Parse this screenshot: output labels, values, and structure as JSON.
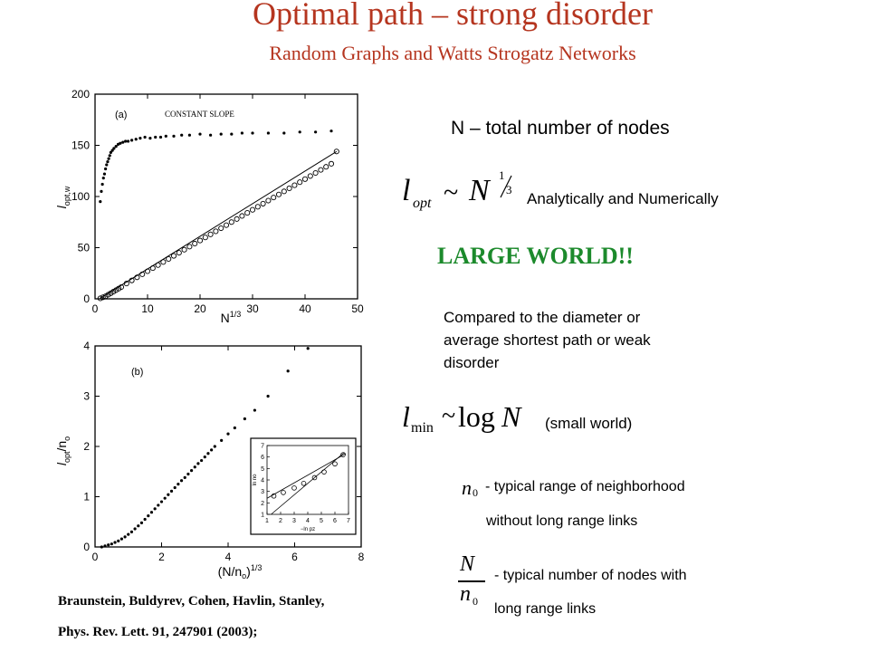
{
  "header": {
    "title": "Optimal path – strong disorder",
    "subtitle": "Random Graphs and Watts Strogatz Networks"
  },
  "text": {
    "n_def": "N – total number of nodes",
    "analytic": "Analytically and Numerically",
    "large_world": "LARGE WORLD!!",
    "compared_1": "Compared to the diameter or",
    "compared_2": "average shortest path or weak",
    "compared_3": "disorder",
    "small_world": "(small world)",
    "n0_desc_1": "- typical range of neighborhood",
    "n0_desc_2": "without long range links",
    "nn0_desc_1": "- typical number of nodes with",
    "nn0_desc_2": "long range links",
    "ref_1": "Braunstein, Buldyrev, Cohen, Havlin, Stanley,",
    "ref_2": "Phys. Rev. Lett. 91, 247901 (2003);"
  },
  "formulas": {
    "lopt_base": "l",
    "lopt_sub": "opt",
    "tilde": "~",
    "N": "N",
    "exp_num": "1",
    "exp_den": "3",
    "lmin_sub": "min",
    "log": "log",
    "n0_n": "n",
    "n0_sub": "0"
  },
  "chart_data": [
    {
      "type": "scatter",
      "panel_label": "(a)",
      "annotation": "CONSTANT SLOPE",
      "xlabel": "N1/3",
      "ylabel": "lopt,w",
      "xlim": [
        0,
        50
      ],
      "ylim": [
        0,
        200
      ],
      "xticks": [
        0,
        10,
        20,
        30,
        40,
        50
      ],
      "yticks": [
        0,
        50,
        100,
        150,
        200
      ],
      "series": [
        {
          "marker": "dot",
          "x": [
            1.0,
            1.2,
            1.4,
            1.6,
            1.8,
            2.0,
            2.2,
            2.4,
            2.6,
            2.8,
            3.0,
            3.3,
            3.6,
            4.0,
            4.4,
            4.8,
            5.3,
            5.8,
            6.3,
            7.0,
            7.8,
            8.6,
            9.5,
            10.5,
            11.5,
            12.5,
            13.5,
            15,
            16.5,
            18,
            20,
            22,
            24,
            26,
            28,
            30,
            33,
            36,
            39,
            42,
            45
          ],
          "y": [
            95,
            105,
            112,
            118,
            122,
            127,
            131,
            134,
            137,
            140,
            143,
            145,
            147,
            149,
            151,
            152,
            153,
            154,
            154,
            155,
            156,
            157,
            158,
            157,
            158,
            158,
            159,
            159,
            160,
            160,
            161,
            160,
            161,
            161,
            162,
            162,
            162,
            162,
            163,
            163,
            164
          ]
        },
        {
          "marker": "circle",
          "fit_line": true,
          "x": [
            1.0,
            1.5,
            2.0,
            2.5,
            3.0,
            3.5,
            4.0,
            4.5,
            5.0,
            6.0,
            7.0,
            8.0,
            9.0,
            10,
            11,
            12,
            13,
            14,
            15,
            16,
            17,
            18,
            19,
            20,
            21,
            22,
            23,
            24,
            25,
            26,
            27,
            28,
            29,
            30,
            31,
            32,
            33,
            34,
            35,
            36,
            37,
            38,
            39,
            40,
            41,
            42,
            43,
            44,
            45,
            46
          ],
          "y": [
            0.5,
            1.5,
            2.5,
            4,
            5.5,
            7,
            8.5,
            10,
            11.5,
            15,
            18,
            21,
            24,
            27,
            30,
            33,
            36,
            39,
            42,
            45,
            48,
            51,
            54,
            57,
            60,
            63,
            66,
            69,
            72,
            75,
            78,
            81,
            84,
            87,
            90,
            93,
            96,
            99,
            102,
            105,
            108,
            111,
            114,
            117,
            120,
            123,
            126,
            129,
            132,
            144
          ]
        }
      ]
    },
    {
      "type": "scatter",
      "panel_label": "(b)",
      "xlabel": "(N/no)1/3",
      "ylabel": "lopt/no",
      "xlim": [
        0,
        8
      ],
      "ylim": [
        0,
        4
      ],
      "xticks": [
        0,
        2,
        4,
        6,
        8
      ],
      "yticks": [
        0,
        1,
        2,
        3,
        4
      ],
      "series": [
        {
          "marker": "dot",
          "x": [
            0.2,
            0.3,
            0.4,
            0.5,
            0.6,
            0.7,
            0.8,
            0.9,
            1.0,
            1.1,
            1.2,
            1.3,
            1.4,
            1.5,
            1.6,
            1.7,
            1.8,
            1.9,
            2.0,
            2.1,
            2.2,
            2.3,
            2.4,
            2.5,
            2.6,
            2.7,
            2.8,
            2.9,
            3.0,
            3.1,
            3.2,
            3.3,
            3.4,
            3.5,
            3.6,
            3.8,
            4.0,
            4.2,
            4.5,
            4.8,
            5.2,
            5.8,
            6.4
          ],
          "y": [
            0.0,
            0.02,
            0.04,
            0.06,
            0.09,
            0.12,
            0.16,
            0.2,
            0.25,
            0.3,
            0.36,
            0.42,
            0.48,
            0.55,
            0.62,
            0.69,
            0.76,
            0.83,
            0.9,
            0.97,
            1.04,
            1.11,
            1.18,
            1.25,
            1.32,
            1.38,
            1.45,
            1.52,
            1.59,
            1.66,
            1.72,
            1.79,
            1.86,
            1.93,
            2.0,
            2.12,
            2.25,
            2.37,
            2.55,
            2.72,
            3.0,
            3.5,
            3.95
          ]
        }
      ],
      "inset": {
        "xlabel": "−ln pz",
        "ylabel": "ln no",
        "xlim": [
          1,
          7
        ],
        "ylim": [
          1,
          7
        ],
        "xticks": [
          1,
          2,
          3,
          4,
          5,
          6,
          7
        ],
        "yticks": [
          1,
          2,
          3,
          4,
          5,
          6,
          7
        ],
        "points_x": [
          1.5,
          2.2,
          3.0,
          3.7,
          4.5,
          5.2,
          6.0,
          6.6
        ],
        "points_y": [
          2.6,
          2.9,
          3.3,
          3.7,
          4.2,
          4.7,
          5.4,
          6.2
        ],
        "fit_line": [
          [
            1.0,
            2.4
          ],
          [
            6.8,
            6.3
          ]
        ],
        "ref_line": [
          [
            1.3,
            1.0
          ],
          [
            6.7,
            6.4
          ]
        ]
      }
    }
  ]
}
